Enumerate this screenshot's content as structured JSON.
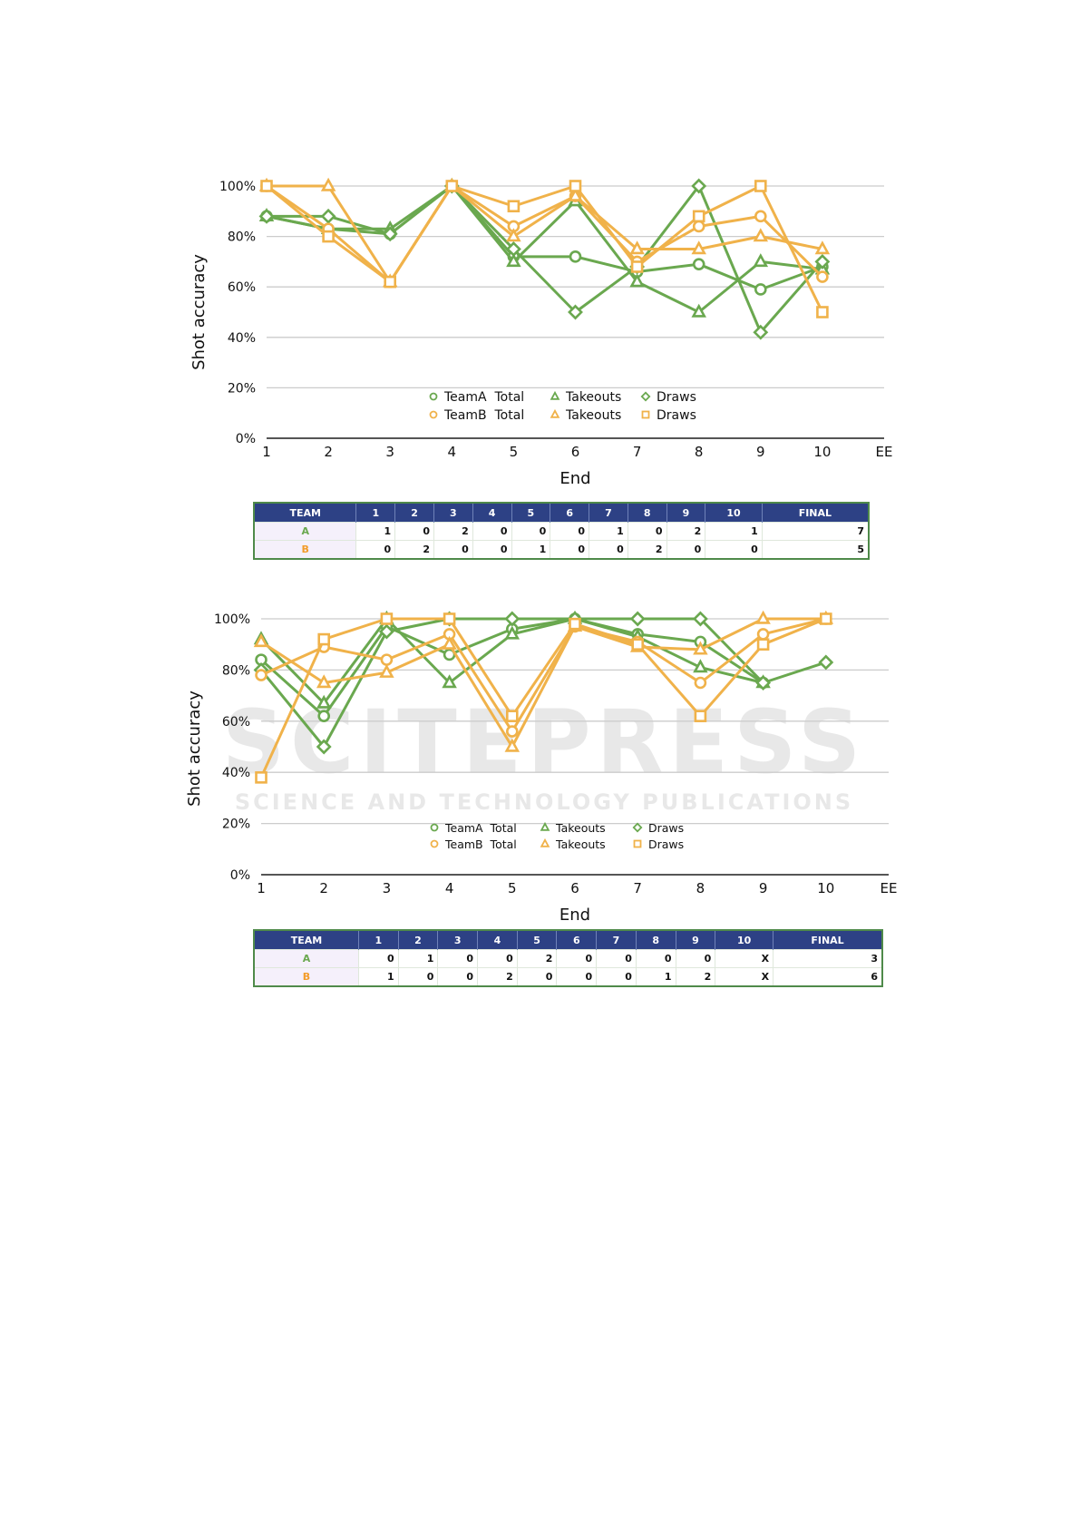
{
  "watermark": {
    "logo_text": "SCITEPRESS",
    "tagline": "SCIENCE AND TECHNOLOGY PUBLICATIONS"
  },
  "colors": {
    "team_a": "#6aa84f",
    "team_b": "#f0b24a",
    "header_bg": "#2d4185"
  },
  "chart_data": [
    {
      "type": "line",
      "xlabel": "End",
      "ylabel": "Shot accuracy",
      "categories": [
        "1",
        "2",
        "3",
        "4",
        "5",
        "6",
        "7",
        "8",
        "9",
        "10",
        "EE"
      ],
      "y_ticks": [
        "0%",
        "20%",
        "40%",
        "60%",
        "80%",
        "100%"
      ],
      "ylim": [
        0,
        100
      ],
      "grid": true,
      "legend_placement": "bottom-center",
      "legend": [
        [
          "TeamA  Total",
          "Takeouts",
          "Draws"
        ],
        [
          "TeamB  Total",
          "Takeouts",
          "Draws"
        ]
      ],
      "series": [
        {
          "team": "A",
          "name": "TeamA  Total",
          "marker": "circle",
          "color": "#6aa84f",
          "values": [
            88,
            83,
            81,
            100,
            72,
            72,
            66,
            69,
            59,
            68,
            null
          ]
        },
        {
          "team": "A",
          "name": "Takeouts",
          "marker": "triangle",
          "color": "#6aa84f",
          "values": [
            88,
            83,
            83,
            100,
            70,
            94,
            62,
            50,
            70,
            67,
            null
          ]
        },
        {
          "team": "A",
          "name": "Draws",
          "marker": "diamond",
          "color": "#6aa84f",
          "values": [
            88,
            88,
            81,
            100,
            75,
            50,
            68,
            100,
            42,
            70,
            null
          ]
        },
        {
          "team": "B",
          "name": "TeamB  Total",
          "marker": "circle",
          "color": "#f0b24a",
          "values": [
            100,
            83,
            62,
            100,
            84,
            96,
            70,
            84,
            88,
            64,
            null
          ]
        },
        {
          "team": "B",
          "name": "Takeouts",
          "marker": "triangle",
          "color": "#f0b24a",
          "values": [
            100,
            100,
            62,
            100,
            80,
            96,
            75,
            75,
            80,
            75,
            null
          ]
        },
        {
          "team": "B",
          "name": "Draws",
          "marker": "square",
          "color": "#f0b24a",
          "values": [
            100,
            80,
            62,
            100,
            92,
            100,
            68,
            88,
            100,
            50,
            null
          ]
        }
      ]
    },
    {
      "type": "line",
      "xlabel": "End",
      "ylabel": "Shot accuracy",
      "categories": [
        "1",
        "2",
        "3",
        "4",
        "5",
        "6",
        "7",
        "8",
        "9",
        "10",
        "EE"
      ],
      "y_ticks": [
        "0%",
        "20%",
        "40%",
        "60%",
        "80%",
        "100%"
      ],
      "ylim": [
        0,
        100
      ],
      "grid": true,
      "legend_placement": "bottom-center",
      "legend": [
        [
          "TeamA  Total",
          "Takeouts",
          "Draws"
        ],
        [
          "TeamB  Total",
          "Takeouts",
          "Draws"
        ]
      ],
      "series": [
        {
          "team": "A",
          "name": "TeamA  Total",
          "marker": "circle",
          "color": "#6aa84f",
          "values": [
            84,
            62,
            97,
            86,
            96,
            100,
            94,
            91,
            75,
            null,
            null
          ]
        },
        {
          "team": "A",
          "name": "Takeouts",
          "marker": "triangle",
          "color": "#6aa84f",
          "values": [
            92,
            67,
            100,
            75,
            94,
            100,
            93,
            81,
            75,
            null,
            null
          ]
        },
        {
          "team": "A",
          "name": "Draws",
          "marker": "diamond",
          "color": "#6aa84f",
          "values": [
            80,
            50,
            95,
            100,
            100,
            100,
            100,
            100,
            75,
            83,
            null
          ]
        },
        {
          "team": "B",
          "name": "TeamB  Total",
          "marker": "circle",
          "color": "#f0b24a",
          "values": [
            78,
            89,
            84,
            94,
            56,
            97,
            91,
            75,
            94,
            100,
            null
          ]
        },
        {
          "team": "B",
          "name": "Takeouts",
          "marker": "triangle",
          "color": "#f0b24a",
          "values": [
            91,
            75,
            79,
            90,
            50,
            97,
            89,
            88,
            100,
            100,
            null
          ]
        },
        {
          "team": "B",
          "name": "Draws",
          "marker": "square",
          "color": "#f0b24a",
          "values": [
            38,
            92,
            100,
            100,
            62,
            98,
            90,
            62,
            90,
            100,
            null
          ]
        }
      ]
    }
  ],
  "scoreboards": [
    {
      "headers": [
        "TEAM",
        "1",
        "2",
        "3",
        "4",
        "5",
        "6",
        "7",
        "8",
        "9",
        "10",
        "FINAL"
      ],
      "rows": [
        {
          "team": "A",
          "ends": [
            "1",
            "0",
            "2",
            "0",
            "0",
            "0",
            "1",
            "0",
            "2",
            "1"
          ],
          "final": "7"
        },
        {
          "team": "B",
          "ends": [
            "0",
            "2",
            "0",
            "0",
            "1",
            "0",
            "0",
            "2",
            "0",
            "0"
          ],
          "final": "5"
        }
      ]
    },
    {
      "headers": [
        "TEAM",
        "1",
        "2",
        "3",
        "4",
        "5",
        "6",
        "7",
        "8",
        "9",
        "10",
        "FINAL"
      ],
      "rows": [
        {
          "team": "A",
          "ends": [
            "0",
            "1",
            "0",
            "0",
            "2",
            "0",
            "0",
            "0",
            "0",
            "X"
          ],
          "final": "3"
        },
        {
          "team": "B",
          "ends": [
            "1",
            "0",
            "0",
            "2",
            "0",
            "0",
            "0",
            "1",
            "2",
            "X"
          ],
          "final": "6"
        }
      ]
    }
  ]
}
